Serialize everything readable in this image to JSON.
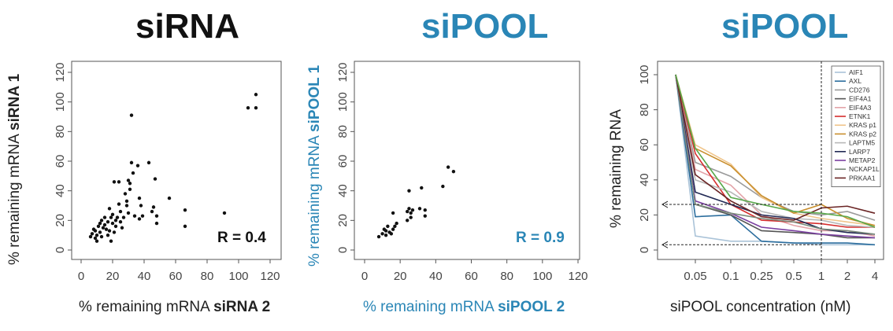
{
  "colors": {
    "black": "#111111",
    "blue": "#2a86b6",
    "axis": "#555555"
  },
  "titles": [
    "siRNA",
    "siPOOL",
    "siPOOL"
  ],
  "x_labels": [
    {
      "prefix": "% remaining mRNA ",
      "bold": "siRNA 2"
    },
    {
      "prefix": "% remaining mRNA ",
      "bold": "siPOOL 2"
    },
    {
      "prefix": "siPOOL concentration (nM)",
      "bold": ""
    }
  ],
  "y_labels": [
    {
      "prefix": "% remaining mRNA ",
      "bold": "siRNA 1"
    },
    {
      "prefix": "% remaining mRNA ",
      "bold": "siPOOL 1"
    },
    {
      "prefix": "% remaining RNA",
      "bold": ""
    }
  ],
  "chart_data": [
    {
      "type": "scatter",
      "title": "siRNA",
      "xlabel": "% remaining mRNA siRNA 2",
      "ylabel": "% remaining mRNA siRNA 1",
      "xlim": [
        0,
        120
      ],
      "ylim": [
        0,
        120
      ],
      "xticks": [
        0,
        20,
        40,
        60,
        80,
        100,
        120
      ],
      "yticks": [
        0,
        20,
        40,
        60,
        80,
        100,
        120
      ],
      "annotation": "R = 0.4",
      "points": [
        [
          6,
          9
        ],
        [
          7,
          11
        ],
        [
          8,
          14
        ],
        [
          9,
          8
        ],
        [
          9,
          13
        ],
        [
          10,
          6
        ],
        [
          10,
          10
        ],
        [
          11,
          16
        ],
        [
          12,
          18
        ],
        [
          12,
          12
        ],
        [
          13,
          20
        ],
        [
          13,
          9
        ],
        [
          14,
          15
        ],
        [
          15,
          17
        ],
        [
          15,
          22
        ],
        [
          16,
          14
        ],
        [
          17,
          19
        ],
        [
          17,
          10
        ],
        [
          18,
          28
        ],
        [
          18,
          13
        ],
        [
          19,
          22
        ],
        [
          19,
          6
        ],
        [
          20,
          18
        ],
        [
          20,
          24
        ],
        [
          21,
          12
        ],
        [
          21,
          46
        ],
        [
          22,
          20
        ],
        [
          22,
          16
        ],
        [
          23,
          22
        ],
        [
          24,
          31
        ],
        [
          24,
          46
        ],
        [
          25,
          26
        ],
        [
          25,
          19
        ],
        [
          26,
          15
        ],
        [
          27,
          22
        ],
        [
          28,
          38
        ],
        [
          29,
          30
        ],
        [
          29,
          33
        ],
        [
          30,
          25
        ],
        [
          30,
          47
        ],
        [
          31,
          41
        ],
        [
          31,
          45
        ],
        [
          32,
          91
        ],
        [
          32,
          59
        ],
        [
          33,
          52
        ],
        [
          34,
          23
        ],
        [
          36,
          57
        ],
        [
          37,
          35
        ],
        [
          37,
          21
        ],
        [
          38,
          30
        ],
        [
          39,
          23
        ],
        [
          43,
          59
        ],
        [
          45,
          26
        ],
        [
          46,
          29
        ],
        [
          47,
          48
        ],
        [
          48,
          18
        ],
        [
          48,
          23
        ],
        [
          56,
          35
        ],
        [
          66,
          16
        ],
        [
          66,
          27
        ],
        [
          91,
          25
        ],
        [
          106,
          96
        ],
        [
          111,
          96
        ],
        [
          111,
          105
        ]
      ]
    },
    {
      "type": "scatter",
      "title": "siPOOL",
      "xlabel": "% remaining mRNA siPOOL 2",
      "ylabel": "% remaining mRNA siPOOL 1",
      "xlim": [
        0,
        120
      ],
      "ylim": [
        0,
        120
      ],
      "xticks": [
        0,
        20,
        40,
        60,
        80,
        100,
        120
      ],
      "yticks": [
        0,
        20,
        40,
        60,
        80,
        100,
        120
      ],
      "annotation": "R = 0.9",
      "points": [
        [
          8,
          9
        ],
        [
          10,
          11
        ],
        [
          11,
          14
        ],
        [
          12,
          13
        ],
        [
          12,
          10
        ],
        [
          13,
          16
        ],
        [
          14,
          12
        ],
        [
          15,
          11
        ],
        [
          16,
          14
        ],
        [
          16,
          25
        ],
        [
          17,
          16
        ],
        [
          18,
          18
        ],
        [
          24,
          20
        ],
        [
          24,
          26
        ],
        [
          25,
          28
        ],
        [
          25,
          40
        ],
        [
          26,
          22
        ],
        [
          26,
          25
        ],
        [
          27,
          27
        ],
        [
          31,
          28
        ],
        [
          32,
          42
        ],
        [
          34,
          27
        ],
        [
          34,
          23
        ],
        [
          44,
          43
        ],
        [
          47,
          56
        ],
        [
          50,
          53
        ]
      ]
    },
    {
      "type": "line",
      "title": "siPOOL",
      "xlabel": "siPOOL concentration (nM)",
      "ylabel": "% remaining RNA",
      "x": [
        0.01,
        0.05,
        0.1,
        0.25,
        0.5,
        1,
        2,
        4
      ],
      "xtick_labels": [
        "0.05",
        "0.1",
        "0.25",
        "0.5",
        "1",
        "2",
        "4"
      ],
      "yticks": [
        0,
        20,
        40,
        60,
        80,
        100
      ],
      "ylim": [
        0,
        105
      ],
      "reference_x": 1,
      "reference_y": [
        26,
        3
      ],
      "legend_position": "top-right",
      "series": [
        {
          "name": "AIF1",
          "color": "#aac3d8",
          "values": [
            100,
            8,
            5,
            5,
            4,
            3,
            3,
            3
          ]
        },
        {
          "name": "AXL",
          "color": "#2c6e9e",
          "values": [
            100,
            19,
            20,
            5,
            4,
            4,
            4,
            3
          ]
        },
        {
          "name": "CD276",
          "color": "#9a9a9a",
          "values": [
            100,
            50,
            42,
            30,
            22,
            20,
            22,
            17
          ]
        },
        {
          "name": "EIF4A1",
          "color": "#555555",
          "values": [
            100,
            26,
            20,
            11,
            10,
            9,
            7,
            7
          ]
        },
        {
          "name": "EIF4A3",
          "color": "#e3a3a8",
          "values": [
            100,
            46,
            37,
            20,
            14,
            11,
            11,
            8
          ]
        },
        {
          "name": "ETNK1",
          "color": "#d62d2d",
          "values": [
            100,
            55,
            26,
            17,
            16,
            15,
            13,
            13
          ]
        },
        {
          "name": "KRAS p1",
          "color": "#f0c58b",
          "values": [
            100,
            60,
            49,
            30,
            21,
            18,
            16,
            14
          ]
        },
        {
          "name": "KRAS p2",
          "color": "#c98f2e",
          "values": [
            100,
            58,
            48,
            31,
            21,
            26,
            18,
            14
          ]
        },
        {
          "name": "LAPTM5",
          "color": "#b8b8b8",
          "values": [
            100,
            40,
            33,
            22,
            18,
            17,
            14,
            13
          ]
        },
        {
          "name": "LARP7",
          "color": "#222a55",
          "values": [
            100,
            33,
            26,
            20,
            18,
            12,
            10,
            9
          ]
        },
        {
          "name": "METAP2",
          "color": "#7a3fa0",
          "values": [
            100,
            28,
            21,
            13,
            11,
            9,
            8,
            7
          ]
        },
        {
          "name": "NCKAP1L",
          "color": "#7a8a7a",
          "values": [
            100,
            26,
            21,
            18,
            16,
            12,
            11,
            9
          ]
        },
        {
          "name": "PRKAA1",
          "color": "#6a2424",
          "values": [
            100,
            43,
            28,
            19,
            17,
            24,
            25,
            21
          ]
        },
        {
          "name": "",
          "color": "#58a84a",
          "values": [
            100,
            58,
            30,
            26,
            22,
            21,
            19,
            13
          ]
        }
      ]
    }
  ]
}
